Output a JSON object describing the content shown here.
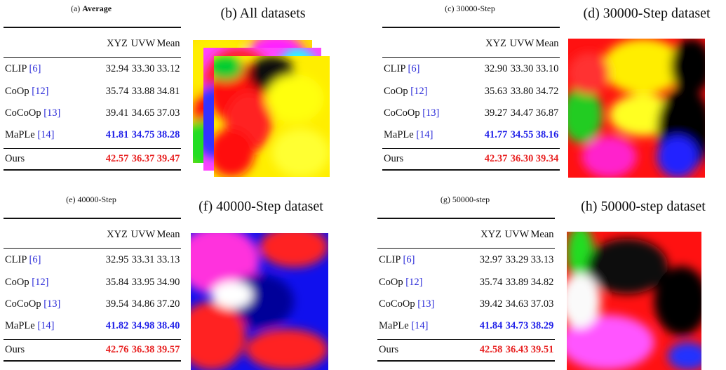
{
  "panels": [
    {
      "table": {
        "label": "(a)",
        "title": "Average",
        "title_bold": true,
        "columns": [
          "XYZ",
          "UVW",
          "Mean"
        ],
        "rows": [
          {
            "method": "CLIP",
            "ref": "[6]",
            "values": [
              "32.94",
              "33.30",
              "33.12"
            ]
          },
          {
            "method": "CoOp",
            "ref": "[12]",
            "values": [
              "35.74",
              "33.88",
              "34.81"
            ]
          },
          {
            "method": "CoCoOp",
            "ref": "[13]",
            "values": [
              "39.41",
              "34.65",
              "37.03"
            ]
          },
          {
            "method": "MaPLe",
            "ref": "[14]",
            "values": [
              "41.81",
              "34.75",
              "38.28"
            ],
            "highlight": "#1f1fe8"
          },
          {
            "method": "Ours",
            "values": [
              "42.57",
              "36.37",
              "39.47"
            ],
            "highlight": "#e82222",
            "shaded": true
          }
        ]
      },
      "image": {
        "label": "(b)",
        "caption": "All datasets"
      }
    },
    {
      "table": {
        "label": "(c)",
        "title": "30000-Step",
        "columns": [
          "XYZ",
          "UVW",
          "Mean"
        ],
        "rows": [
          {
            "method": "CLIP",
            "ref": "[6]",
            "values": [
              "32.90",
              "33.30",
              "33.10"
            ]
          },
          {
            "method": "CoOp",
            "ref": "[12]",
            "values": [
              "35.63",
              "33.80",
              "34.72"
            ]
          },
          {
            "method": "CoCoOp",
            "ref": "[13]",
            "values": [
              "39.27",
              "34.47",
              "36.87"
            ]
          },
          {
            "method": "MaPLe",
            "ref": "[14]",
            "values": [
              "41.77",
              "34.55",
              "38.16"
            ],
            "highlight": "#1f1fe8"
          },
          {
            "method": "Ours",
            "values": [
              "42.37",
              "36.30",
              "39.34"
            ],
            "highlight": "#e82222",
            "shaded": true
          }
        ]
      },
      "image": {
        "label": "(d)",
        "caption": "30000-Step dataset"
      }
    },
    {
      "table": {
        "label": "(e)",
        "title": "40000-Step",
        "columns": [
          "XYZ",
          "UVW",
          "Mean"
        ],
        "rows": [
          {
            "method": "CLIP",
            "ref": "[6]",
            "values": [
              "32.95",
              "33.31",
              "33.13"
            ]
          },
          {
            "method": "CoOp",
            "ref": "[12]",
            "values": [
              "35.84",
              "33.95",
              "34.90"
            ]
          },
          {
            "method": "CoCoOp",
            "ref": "[13]",
            "values": [
              "39.54",
              "34.86",
              "37.20"
            ]
          },
          {
            "method": "MaPLe",
            "ref": "[14]",
            "values": [
              "41.82",
              "34.98",
              "38.40"
            ],
            "highlight": "#1f1fe8"
          },
          {
            "method": "Ours",
            "values": [
              "42.76",
              "36.38",
              "39.57"
            ],
            "highlight": "#e82222",
            "shaded": true
          }
        ]
      },
      "image": {
        "label": "(f)",
        "caption": "40000-Step dataset"
      }
    },
    {
      "table": {
        "label": "(g)",
        "title": "50000-step",
        "columns": [
          "XYZ",
          "UVW",
          "Mean"
        ],
        "rows": [
          {
            "method": "CLIP",
            "ref": "[6]",
            "values": [
              "32.97",
              "33.29",
              "33.13"
            ]
          },
          {
            "method": "CoOp",
            "ref": "[12]",
            "values": [
              "35.74",
              "33.89",
              "34.82"
            ]
          },
          {
            "method": "CoCoOp",
            "ref": "[13]",
            "values": [
              "39.42",
              "34.63",
              "37.03"
            ]
          },
          {
            "method": "MaPLe",
            "ref": "[14]",
            "values": [
              "41.84",
              "34.73",
              "38.29"
            ],
            "highlight": "#1f1fe8"
          },
          {
            "method": "Ours",
            "values": [
              "42.58",
              "36.43",
              "39.51"
            ],
            "highlight": "#e82222",
            "shaded": true
          }
        ]
      },
      "image": {
        "label": "(h)",
        "caption": "50000-step dataset"
      }
    }
  ]
}
